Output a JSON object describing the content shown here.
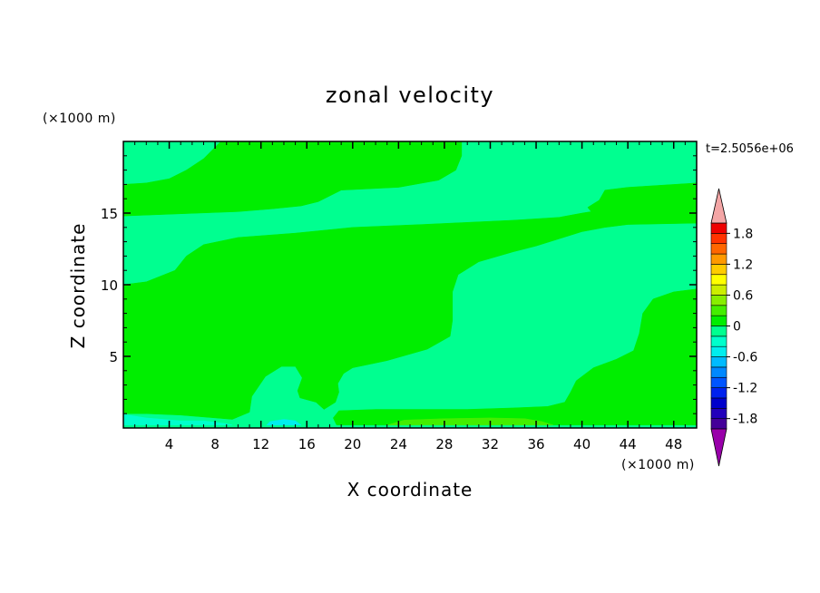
{
  "chart_data": {
    "type": "heatmap",
    "title": "zonal velocity",
    "xlabel": "X coordinate",
    "ylabel": "Z coordinate",
    "x_unit": "(×1000 m)",
    "y_unit": "(×1000 m)",
    "time_label": "t=2.5056e+06",
    "xlim": [
      0,
      50
    ],
    "ylim": [
      0,
      20
    ],
    "x_ticks": [
      4,
      8,
      12,
      16,
      20,
      24,
      28,
      32,
      36,
      40,
      44,
      48
    ],
    "y_ticks": [
      5,
      10,
      15
    ],
    "colorbar": {
      "labels": [
        "1.8",
        "1.2",
        "0.6",
        "0",
        "-0.6",
        "-1.2",
        "-1.8"
      ],
      "label_values": [
        1.8,
        1.2,
        0.6,
        0,
        -0.6,
        -1.2,
        -1.8
      ],
      "levels_from": -2.0,
      "level_step": 0.2,
      "colors": [
        "#440099",
        "#2200bb",
        "#0000cc",
        "#0022ee",
        "#0055ff",
        "#0088ff",
        "#00bbff",
        "#00eeee",
        "#00ffcc",
        "#00ff90",
        "#00ee00",
        "#44ee00",
        "#88ee00",
        "#ccee00",
        "#ffff00",
        "#ffcc00",
        "#ff9900",
        "#ff6600",
        "#ff3300",
        "#ee0000"
      ],
      "extend_low_color": "#9900aa",
      "extend_high_color": "#f4a6a6"
    },
    "regions": [
      {
        "value": 0.1,
        "color": "#00ee00",
        "points": [
          [
            0,
            17
          ],
          [
            2,
            17.1
          ],
          [
            4,
            17.4
          ],
          [
            5.5,
            18
          ],
          [
            7,
            18.8
          ],
          [
            8,
            19.6
          ],
          [
            8.5,
            20
          ],
          [
            29.5,
            20
          ],
          [
            29.5,
            19
          ],
          [
            29,
            18
          ],
          [
            27.5,
            17.3
          ],
          [
            24,
            16.8
          ],
          [
            19,
            16.6
          ],
          [
            17,
            15.8
          ],
          [
            15.5,
            15.5
          ],
          [
            13,
            15.3
          ],
          [
            10,
            15.1
          ],
          [
            0,
            14.8
          ]
        ]
      },
      {
        "value": 0.1,
        "color": "#00ee00",
        "points": [
          [
            50,
            17.1
          ],
          [
            48,
            17
          ],
          [
            44,
            16.8
          ],
          [
            42,
            16.6
          ],
          [
            41.5,
            15.9
          ],
          [
            40.5,
            15.4
          ],
          [
            40.8,
            15.1
          ],
          [
            40,
            15
          ],
          [
            38,
            14.7
          ],
          [
            34,
            14.5
          ],
          [
            26,
            14.2
          ],
          [
            20,
            14
          ],
          [
            15,
            13.6
          ],
          [
            10,
            13.3
          ],
          [
            7,
            12.8
          ],
          [
            5.5,
            12
          ],
          [
            4.5,
            11
          ],
          [
            2,
            10.2
          ],
          [
            0,
            10
          ],
          [
            0,
            1
          ],
          [
            2,
            1
          ],
          [
            5,
            0.9
          ],
          [
            8,
            0.7
          ],
          [
            9.5,
            0.6
          ],
          [
            11,
            1.1
          ],
          [
            11.2,
            2.2
          ],
          [
            12.4,
            3.6
          ],
          [
            13.8,
            4.3
          ],
          [
            15,
            4.3
          ],
          [
            15.6,
            3.5
          ],
          [
            15.2,
            2.6
          ],
          [
            15.4,
            2.1
          ],
          [
            16.8,
            1.8
          ],
          [
            17.5,
            1.3
          ],
          [
            18.5,
            1.8
          ],
          [
            18.8,
            2.5
          ],
          [
            18.7,
            3.1
          ],
          [
            19.2,
            3.8
          ],
          [
            20,
            4.2
          ],
          [
            23,
            4.7
          ],
          [
            26.5,
            5.5
          ],
          [
            28.5,
            6.4
          ],
          [
            28.7,
            7.5
          ],
          [
            28.7,
            9.5
          ],
          [
            29.2,
            10.7
          ],
          [
            31,
            11.6
          ],
          [
            34,
            12.3
          ],
          [
            36,
            12.7
          ],
          [
            38,
            13.2
          ],
          [
            40,
            13.7
          ],
          [
            42,
            14
          ],
          [
            44,
            14.2
          ],
          [
            50,
            14.3
          ]
        ]
      },
      {
        "value": 0.1,
        "color": "#00ee00",
        "points": [
          [
            18.6,
            0.2
          ],
          [
            18.3,
            0.7
          ],
          [
            18.8,
            1.2
          ],
          [
            22,
            1.3
          ],
          [
            26,
            1.3
          ],
          [
            30,
            1.3
          ],
          [
            34,
            1.4
          ],
          [
            37,
            1.5
          ],
          [
            38.5,
            1.8
          ],
          [
            39,
            2.5
          ],
          [
            39.5,
            3.3
          ],
          [
            41,
            4.2
          ],
          [
            43,
            4.8
          ],
          [
            44.5,
            5.4
          ],
          [
            45,
            6.6
          ],
          [
            45.3,
            8
          ],
          [
            46.2,
            9
          ],
          [
            48,
            9.5
          ],
          [
            50,
            9.7
          ],
          [
            50,
            0.2
          ]
        ]
      },
      {
        "value": 0.3,
        "color": "#44ee00",
        "points": [
          [
            23,
            0.2
          ],
          [
            24.5,
            0.55
          ],
          [
            28,
            0.65
          ],
          [
            32,
            0.7
          ],
          [
            35,
            0.65
          ],
          [
            36.5,
            0.45
          ],
          [
            37.5,
            0.2
          ]
        ]
      },
      {
        "value": -0.3,
        "color": "#00ffcc",
        "points": [
          [
            0,
            0.2
          ],
          [
            0,
            0.95
          ],
          [
            2,
            0.7
          ],
          [
            5,
            0.5
          ],
          [
            7,
            0.5
          ],
          [
            9,
            0.3
          ],
          [
            9.5,
            0.2
          ]
        ]
      },
      {
        "value": -0.5,
        "color": "#00eeee",
        "points": [
          [
            12.5,
            0.2
          ],
          [
            12.8,
            0.45
          ],
          [
            14,
            0.6
          ],
          [
            15,
            0.5
          ],
          [
            15.5,
            0.2
          ]
        ]
      }
    ],
    "background_value": -0.1,
    "background_color": "#00ff90"
  }
}
